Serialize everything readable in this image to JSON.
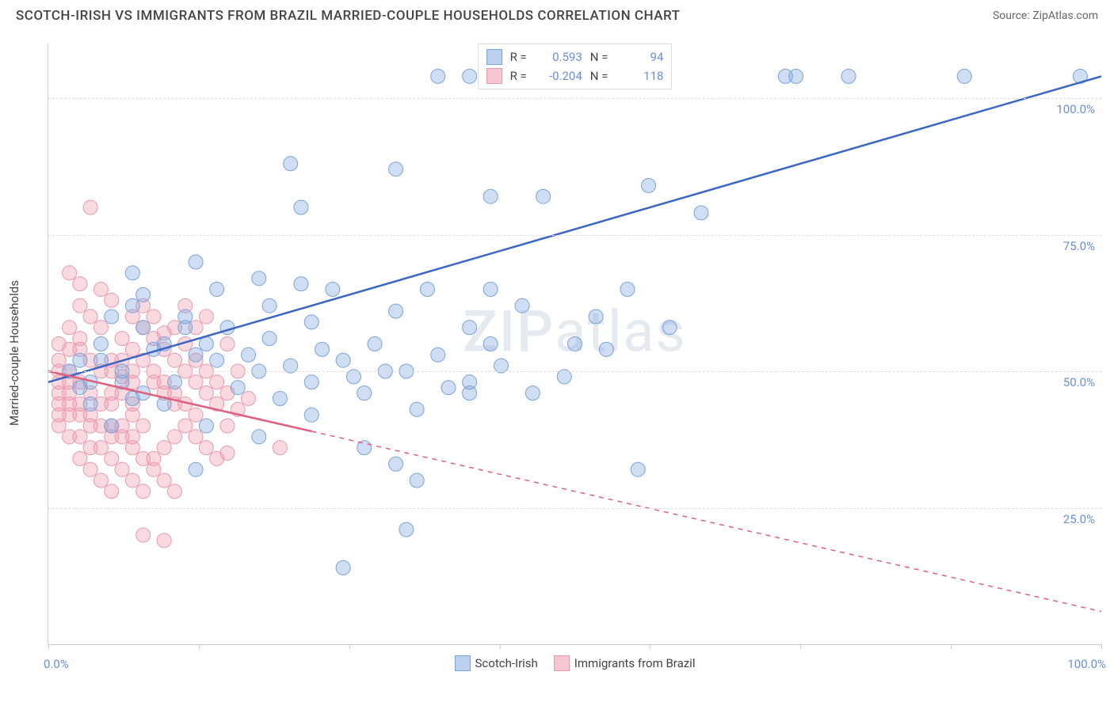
{
  "title": "SCOTCH-IRISH VS IMMIGRANTS FROM BRAZIL MARRIED-COUPLE HOUSEHOLDS CORRELATION CHART",
  "source": "Source: ZipAtlas.com",
  "watermark": "ZIPatlas",
  "ylabel": "Married-couple Households",
  "chart": {
    "type": "scatter-correlation",
    "xlim": [
      0,
      100
    ],
    "ylim": [
      0,
      110
    ],
    "yticks": [
      25,
      50,
      75,
      100
    ],
    "ytick_labels": [
      "25.0%",
      "50.0%",
      "75.0%",
      "100.0%"
    ],
    "xticks": [
      0,
      14.3,
      28.6,
      42.9,
      57.1,
      71.4,
      85.7,
      100
    ],
    "xtick_labels_left": "0.0%",
    "xtick_labels_right": "100.0%",
    "background_color": "#ffffff",
    "grid_color": "#dddddd",
    "series": [
      {
        "name": "Scotch-Irish",
        "color_fill": "rgba(120,160,220,0.35)",
        "color_stroke": "#7ba3d6",
        "line_color": "#3b66c4",
        "swatch_fill": "#bcd1ef",
        "swatch_border": "#7ba3d6",
        "R": "0.593",
        "N": "94",
        "trend": {
          "x1": 0,
          "y1": 48,
          "x2": 100,
          "y2": 104,
          "solid_until_x": 100
        },
        "points": [
          [
            37,
            104
          ],
          [
            40,
            104
          ],
          [
            44,
            104
          ],
          [
            56,
            104
          ],
          [
            70,
            104
          ],
          [
            71,
            104
          ],
          [
            76,
            104
          ],
          [
            87,
            104
          ],
          [
            98,
            104
          ],
          [
            23,
            88
          ],
          [
            33,
            87
          ],
          [
            42,
            82
          ],
          [
            47,
            82
          ],
          [
            57,
            84
          ],
          [
            62,
            79
          ],
          [
            24,
            80
          ],
          [
            8,
            68
          ],
          [
            9,
            64
          ],
          [
            14,
            70
          ],
          [
            16,
            65
          ],
          [
            20,
            67
          ],
          [
            21,
            62
          ],
          [
            24,
            66
          ],
          [
            25,
            59
          ],
          [
            27,
            65
          ],
          [
            33,
            61
          ],
          [
            36,
            65
          ],
          [
            40,
            58
          ],
          [
            42,
            65
          ],
          [
            42,
            55
          ],
          [
            45,
            62
          ],
          [
            50,
            55
          ],
          [
            52,
            60
          ],
          [
            53,
            54
          ],
          [
            55,
            65
          ],
          [
            59,
            58
          ],
          [
            14,
            53
          ],
          [
            5,
            52
          ],
          [
            7,
            50
          ],
          [
            10,
            54
          ],
          [
            12,
            48
          ],
          [
            16,
            52
          ],
          [
            18,
            47
          ],
          [
            20,
            50
          ],
          [
            22,
            45
          ],
          [
            25,
            48
          ],
          [
            28,
            52
          ],
          [
            30,
            46
          ],
          [
            32,
            50
          ],
          [
            35,
            43
          ],
          [
            38,
            47
          ],
          [
            9,
            58
          ],
          [
            11,
            55
          ],
          [
            13,
            58
          ],
          [
            15,
            40
          ],
          [
            20,
            38
          ],
          [
            25,
            42
          ],
          [
            30,
            36
          ],
          [
            33,
            33
          ],
          [
            35,
            30
          ],
          [
            40,
            46
          ],
          [
            56,
            32
          ],
          [
            28,
            14
          ],
          [
            34,
            21
          ],
          [
            14,
            32
          ],
          [
            8,
            45
          ],
          [
            6,
            40
          ],
          [
            4,
            48
          ],
          [
            3,
            52
          ],
          [
            5,
            55
          ],
          [
            2,
            50
          ],
          [
            3,
            47
          ],
          [
            4,
            44
          ],
          [
            6,
            60
          ],
          [
            8,
            62
          ],
          [
            7,
            48
          ],
          [
            9,
            46
          ],
          [
            11,
            44
          ],
          [
            13,
            60
          ],
          [
            15,
            55
          ],
          [
            17,
            58
          ],
          [
            19,
            53
          ],
          [
            21,
            56
          ],
          [
            23,
            51
          ],
          [
            26,
            54
          ],
          [
            29,
            49
          ],
          [
            31,
            55
          ],
          [
            34,
            50
          ],
          [
            37,
            53
          ],
          [
            40,
            48
          ],
          [
            43,
            51
          ],
          [
            46,
            46
          ],
          [
            49,
            49
          ]
        ]
      },
      {
        "name": "Immigrants from Brazil",
        "color_fill": "rgba(240,150,170,0.35)",
        "color_stroke": "#e69ab0",
        "line_color": "#e06080",
        "swatch_fill": "#f6c6d2",
        "swatch_border": "#e69ab0",
        "R": "-0.204",
        "N": "118",
        "trend": {
          "x1": 0,
          "y1": 50,
          "x2": 100,
          "y2": 6,
          "solid_until_x": 25
        },
        "points": [
          [
            4,
            80
          ],
          [
            2,
            68
          ],
          [
            3,
            66
          ],
          [
            5,
            65
          ],
          [
            6,
            63
          ],
          [
            3,
            62
          ],
          [
            4,
            60
          ],
          [
            2,
            58
          ],
          [
            5,
            58
          ],
          [
            7,
            56
          ],
          [
            1,
            55
          ],
          [
            3,
            54
          ],
          [
            4,
            52
          ],
          [
            6,
            52
          ],
          [
            2,
            50
          ],
          [
            5,
            50
          ],
          [
            7,
            49
          ],
          [
            1,
            48
          ],
          [
            3,
            48
          ],
          [
            4,
            46
          ],
          [
            6,
            46
          ],
          [
            2,
            44
          ],
          [
            5,
            44
          ],
          [
            8,
            44
          ],
          [
            1,
            42
          ],
          [
            3,
            42
          ],
          [
            6,
            40
          ],
          [
            4,
            40
          ],
          [
            7,
            38
          ],
          [
            2,
            38
          ],
          [
            5,
            36
          ],
          [
            8,
            36
          ],
          [
            3,
            34
          ],
          [
            6,
            34
          ],
          [
            9,
            34
          ],
          [
            4,
            32
          ],
          [
            7,
            32
          ],
          [
            10,
            32
          ],
          [
            5,
            30
          ],
          [
            8,
            30
          ],
          [
            11,
            30
          ],
          [
            6,
            28
          ],
          [
            9,
            28
          ],
          [
            12,
            28
          ],
          [
            8,
            60
          ],
          [
            9,
            58
          ],
          [
            10,
            56
          ],
          [
            11,
            54
          ],
          [
            12,
            52
          ],
          [
            10,
            50
          ],
          [
            11,
            48
          ],
          [
            12,
            46
          ],
          [
            13,
            44
          ],
          [
            14,
            42
          ],
          [
            8,
            54
          ],
          [
            9,
            52
          ],
          [
            10,
            48
          ],
          [
            11,
            46
          ],
          [
            12,
            44
          ],
          [
            9,
            62
          ],
          [
            10,
            60
          ],
          [
            11,
            57
          ],
          [
            13,
            55
          ],
          [
            14,
            52
          ],
          [
            12,
            58
          ],
          [
            13,
            50
          ],
          [
            14,
            48
          ],
          [
            15,
            46
          ],
          [
            16,
            44
          ],
          [
            14,
            38
          ],
          [
            15,
            36
          ],
          [
            16,
            34
          ],
          [
            13,
            40
          ],
          [
            12,
            38
          ],
          [
            11,
            36
          ],
          [
            10,
            34
          ],
          [
            9,
            40
          ],
          [
            8,
            42
          ],
          [
            15,
            50
          ],
          [
            16,
            48
          ],
          [
            17,
            46
          ],
          [
            15,
            60
          ],
          [
            14,
            58
          ],
          [
            13,
            62
          ],
          [
            18,
            43
          ],
          [
            17,
            40
          ],
          [
            19,
            45
          ],
          [
            18,
            50
          ],
          [
            17,
            55
          ],
          [
            9,
            20
          ],
          [
            11,
            19
          ],
          [
            17,
            35
          ],
          [
            22,
            36
          ],
          [
            1,
            52
          ],
          [
            2,
            54
          ],
          [
            3,
            56
          ],
          [
            1,
            46
          ],
          [
            2,
            48
          ],
          [
            1,
            44
          ],
          [
            2,
            42
          ],
          [
            1,
            40
          ],
          [
            3,
            38
          ],
          [
            4,
            36
          ],
          [
            1,
            50
          ],
          [
            2,
            46
          ],
          [
            3,
            44
          ],
          [
            4,
            42
          ],
          [
            5,
            40
          ],
          [
            6,
            38
          ],
          [
            7,
            40
          ],
          [
            8,
            38
          ],
          [
            6,
            44
          ],
          [
            7,
            46
          ],
          [
            8,
            48
          ],
          [
            6,
            50
          ],
          [
            7,
            52
          ],
          [
            8,
            50
          ]
        ]
      }
    ]
  },
  "legend_bottom": [
    {
      "label": "Scotch-Irish",
      "fill": "#bcd1ef",
      "border": "#7ba3d6"
    },
    {
      "label": "Immigrants from Brazil",
      "fill": "#f6c6d2",
      "border": "#e69ab0"
    }
  ]
}
